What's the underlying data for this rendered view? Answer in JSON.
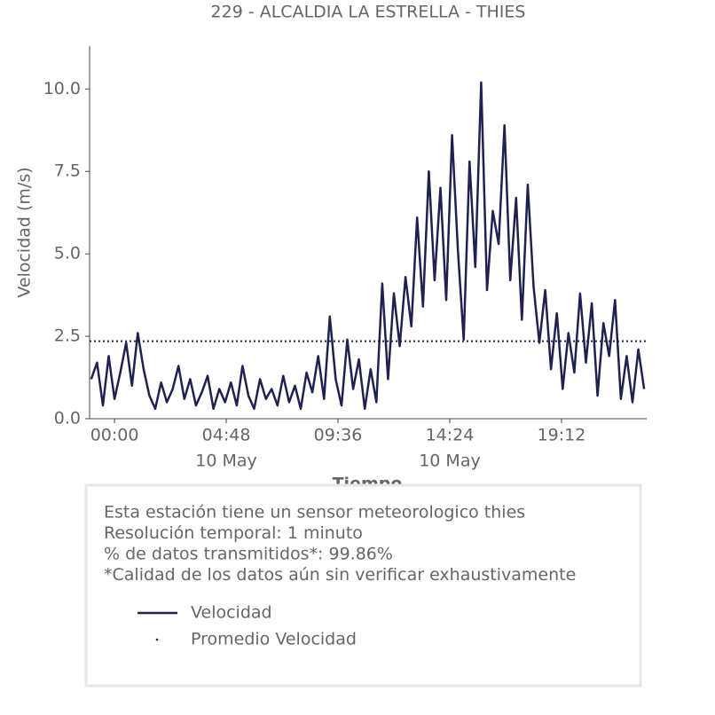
{
  "chart_data": {
    "type": "line",
    "title": "229 - ALCALDIA LA ESTRELLA - THIES",
    "xlabel": "Tiempo",
    "ylabel": "Velocidad (m/s)",
    "x": [
      -1.0,
      -0.75,
      -0.5,
      -0.25,
      0,
      0.25,
      0.5,
      0.75,
      1.0,
      1.25,
      1.5,
      1.75,
      2.0,
      2.25,
      2.5,
      2.75,
      3.0,
      3.25,
      3.5,
      3.75,
      4.0,
      4.25,
      4.5,
      4.75,
      5.0,
      5.25,
      5.5,
      5.75,
      6.0,
      6.25,
      6.5,
      6.75,
      7.0,
      7.25,
      7.5,
      7.75,
      8.0,
      8.25,
      8.5,
      8.75,
      9.0,
      9.25,
      9.5,
      9.75,
      10.0,
      10.25,
      10.5,
      10.75,
      11.0,
      11.25,
      11.5,
      11.75,
      12.0,
      12.25,
      12.5,
      12.75,
      13.0,
      13.25,
      13.5,
      13.75,
      14.0,
      14.25,
      14.5,
      14.75,
      15.0,
      15.25,
      15.5,
      15.75,
      16.0,
      16.25,
      16.5,
      16.75,
      17.0,
      17.25,
      17.5,
      17.75,
      18.0,
      18.25,
      18.5,
      18.75,
      19.0,
      19.25,
      19.5,
      19.75,
      20.0,
      20.25,
      20.5,
      20.75,
      21.0,
      21.25,
      21.5,
      21.75,
      22.0,
      22.25,
      22.5,
      22.75
    ],
    "series": [
      {
        "name": "Velocidad",
        "color": "#1f2150",
        "values": [
          1.2,
          1.7,
          0.4,
          1.9,
          0.6,
          1.4,
          2.3,
          1.0,
          2.6,
          1.5,
          0.7,
          0.3,
          1.1,
          0.5,
          0.9,
          1.6,
          0.6,
          1.2,
          0.4,
          0.8,
          1.3,
          0.3,
          0.9,
          0.5,
          1.1,
          0.4,
          1.6,
          0.7,
          0.3,
          1.2,
          0.6,
          0.9,
          0.4,
          1.3,
          0.5,
          1.0,
          0.3,
          1.4,
          0.8,
          1.9,
          0.6,
          3.1,
          1.2,
          0.4,
          2.4,
          0.9,
          1.8,
          0.3,
          1.5,
          0.5,
          4.1,
          1.2,
          3.8,
          2.2,
          4.3,
          2.8,
          6.1,
          3.4,
          7.5,
          4.2,
          7.0,
          3.6,
          8.6,
          5.1,
          2.4,
          7.8,
          4.6,
          10.2,
          3.9,
          6.3,
          5.3,
          8.9,
          4.2,
          6.7,
          3.0,
          7.1,
          4.0,
          2.3,
          3.9,
          1.5,
          3.2,
          0.9,
          2.6,
          1.4,
          3.8,
          1.7,
          3.5,
          0.7,
          2.9,
          1.9,
          3.6,
          0.6,
          1.9,
          0.5,
          2.1,
          0.9
        ]
      }
    ],
    "average": {
      "name": "Promedio Velocidad",
      "value": 2.35,
      "color": "#1f2150"
    },
    "xlim": [
      -1.07,
      22.86
    ],
    "ylim": [
      0,
      11.3
    ],
    "xticks": [
      {
        "value": 0,
        "label": "00:00"
      },
      {
        "value": 4.8,
        "label": "04:48"
      },
      {
        "value": 9.6,
        "label": "09:36"
      },
      {
        "value": 14.4,
        "label": "14:24"
      },
      {
        "value": 19.2,
        "label": "19:12"
      }
    ],
    "xtick_sublabels": [
      {
        "value": 4.8,
        "label": "10 May"
      },
      {
        "value": 14.4,
        "label": "10 May"
      }
    ],
    "yticks": [
      {
        "value": 0,
        "label": "0.0"
      },
      {
        "value": 2.5,
        "label": "2.5"
      },
      {
        "value": 5,
        "label": "5.0"
      },
      {
        "value": 7.5,
        "label": "7.5"
      },
      {
        "value": 10,
        "label": "10.0"
      }
    ],
    "info": [
      "Esta estación tiene un sensor meteorologico thies",
      "Resolución temporal: 1 minuto",
      "% de datos transmitidos*: 99.86%",
      "*Calidad de los datos aún sin verificar exhaustivamente"
    ]
  }
}
